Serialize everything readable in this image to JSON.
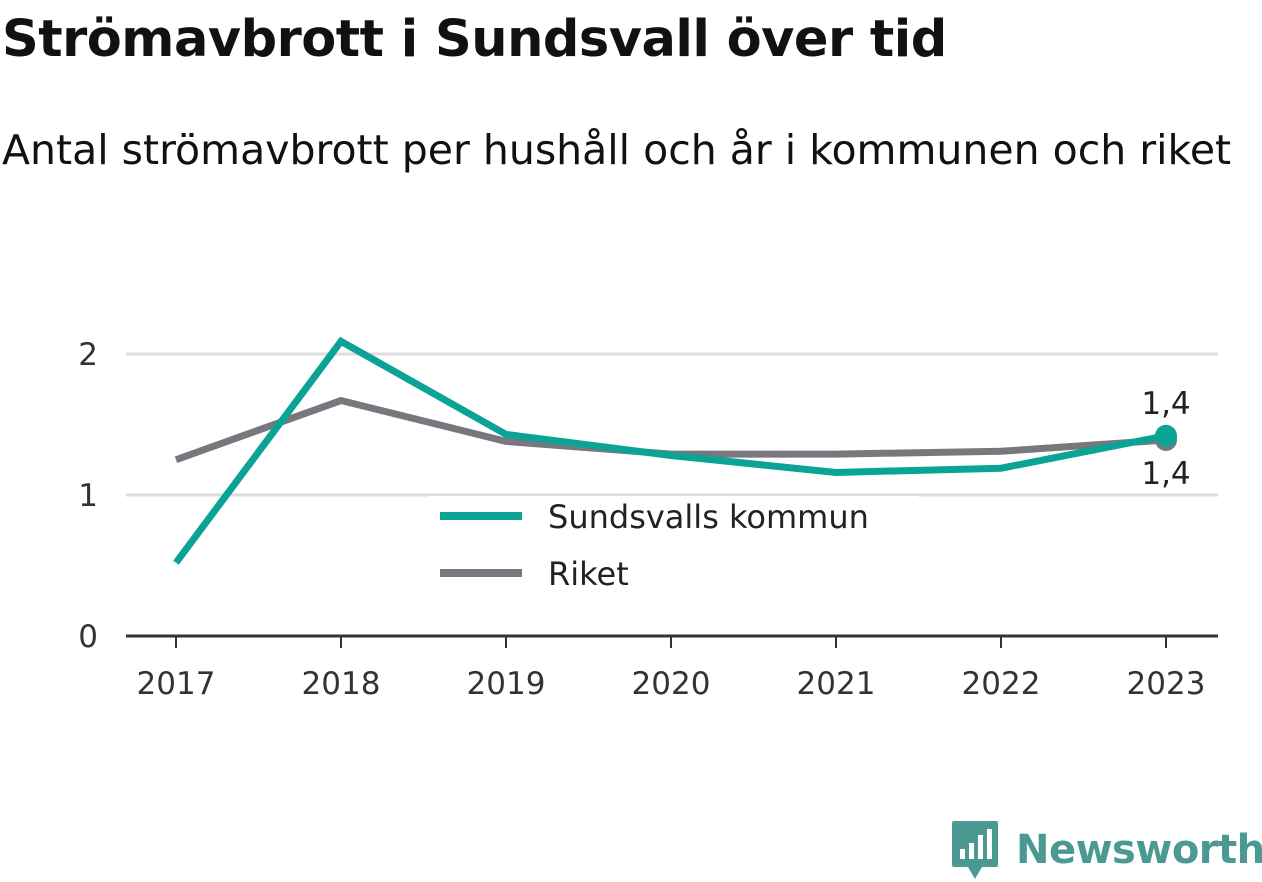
{
  "title": "Strömavbrott i Sundsvall över tid",
  "subtitle": "Antal strömavbrott per hushåll och år i kommunen och riket",
  "brand": {
    "name": "Newsworthy",
    "color": "#4a9a93",
    "icon": "bar-chart-speech-bubble-icon"
  },
  "colors": {
    "kommun": "#0aa396",
    "riket": "#78777d",
    "grid": "#dddddd",
    "axis": "#333333"
  },
  "chart_data": {
    "type": "line",
    "categories": [
      "2017",
      "2018",
      "2019",
      "2020",
      "2021",
      "2022",
      "2023"
    ],
    "series": [
      {
        "name": "Sundsvalls kommun",
        "values": [
          0.52,
          2.09,
          1.43,
          1.28,
          1.16,
          1.19,
          1.42
        ]
      },
      {
        "name": "Riket",
        "values": [
          1.25,
          1.67,
          1.38,
          1.29,
          1.29,
          1.31,
          1.39
        ]
      }
    ],
    "end_labels": [
      "1,4",
      "1,4"
    ],
    "y_ticks": [
      "0",
      "1",
      "2"
    ],
    "ylim": [
      0,
      2
    ],
    "grid": true,
    "legend": "inside-bottom-center"
  }
}
